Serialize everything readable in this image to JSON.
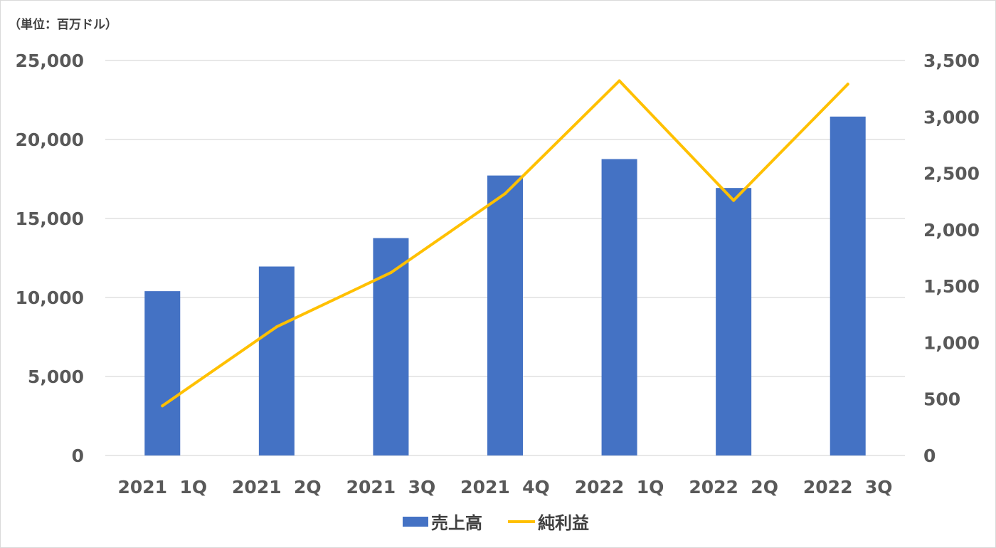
{
  "chart_data": {
    "type": "bar",
    "unit_label": "（単位：百万ドル）",
    "categories": [
      "2021  1Q",
      "2021  2Q",
      "2021  3Q",
      "2021  4Q",
      "2022  1Q",
      "2022  2Q",
      "2022  3Q"
    ],
    "series": [
      {
        "name": "売上高",
        "type": "bar",
        "axis": "left",
        "color": "#4472C4",
        "values": [
          10400,
          11960,
          13760,
          17720,
          18760,
          16930,
          21450
        ]
      },
      {
        "name": "純利益",
        "type": "line",
        "axis": "right",
        "color": "#FFC000",
        "values": [
          440,
          1140,
          1620,
          2320,
          3320,
          2260,
          3290
        ]
      }
    ],
    "y_left": {
      "min": 0,
      "max": 25000,
      "ticks": [
        0,
        5000,
        10000,
        15000,
        20000,
        25000
      ],
      "tick_labels": [
        "0",
        "5,000",
        "10,000",
        "15,000",
        "20,000",
        "25,000"
      ]
    },
    "y_right": {
      "min": 0,
      "max": 3500,
      "ticks": [
        0,
        500,
        1000,
        1500,
        2000,
        2500,
        3000,
        3500
      ],
      "tick_labels": [
        "0",
        "500",
        "1,000",
        "1,500",
        "2,000",
        "2,500",
        "3,000",
        "3,500"
      ]
    },
    "grid": true,
    "legend_position": "bottom"
  }
}
